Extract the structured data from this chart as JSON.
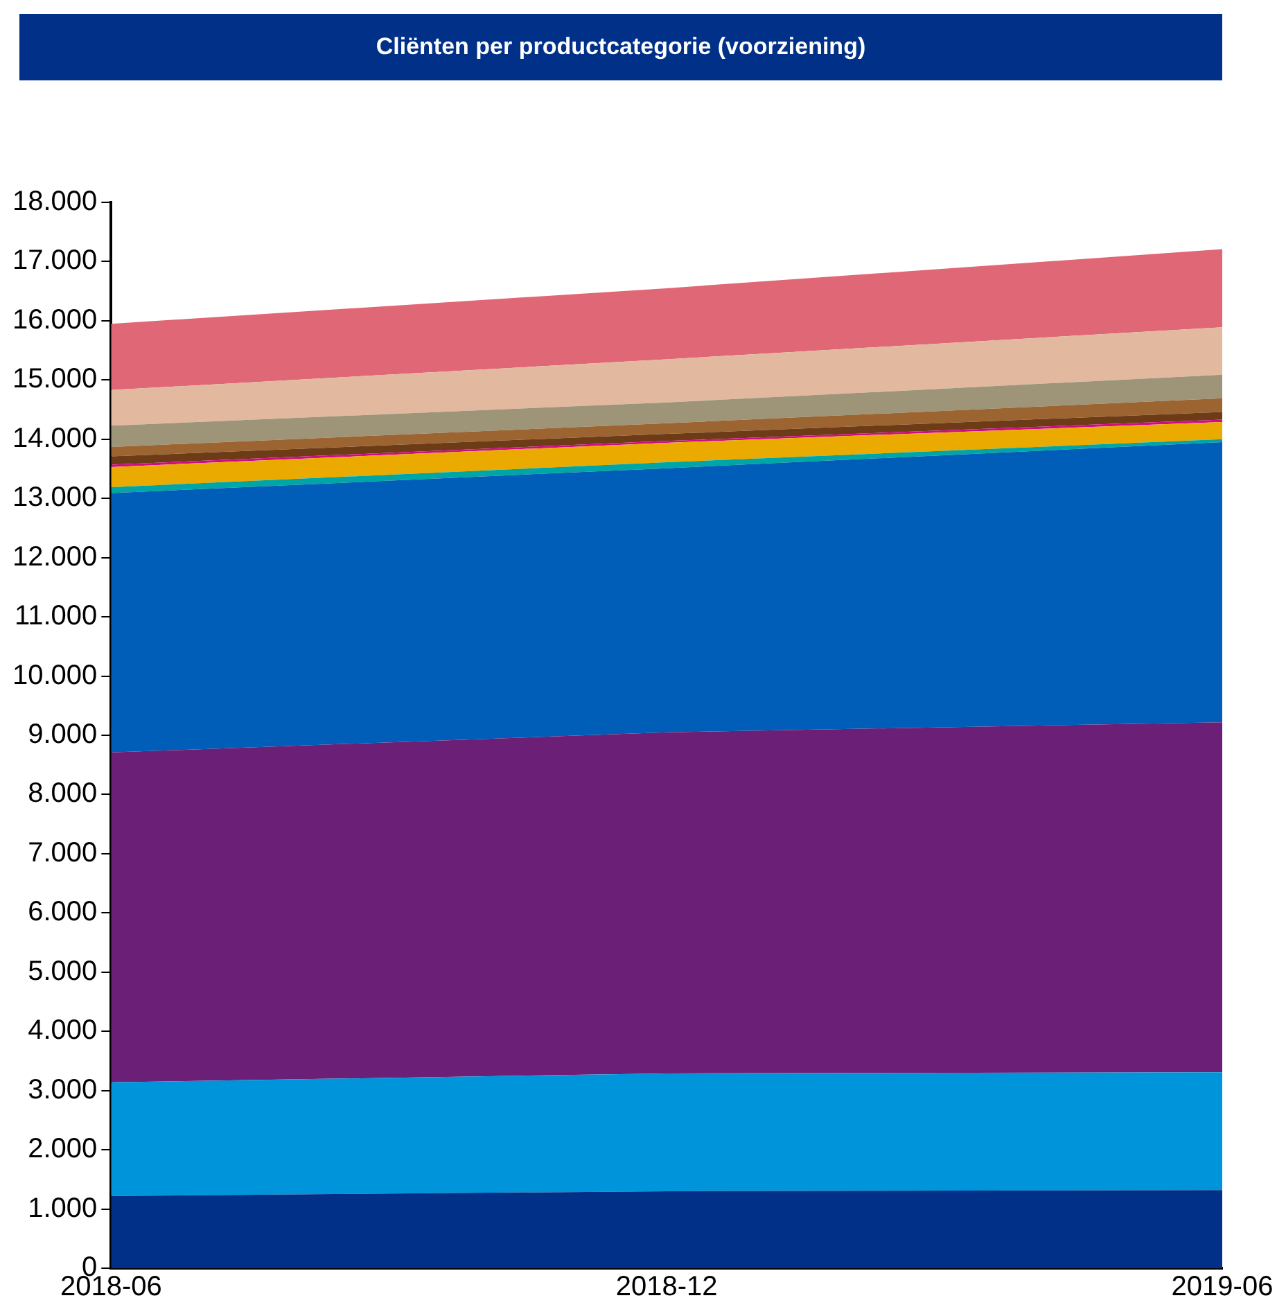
{
  "chart_data": {
    "type": "area",
    "title": "Cliënten per productcategorie (voorziening)",
    "stacked": true,
    "categories": [
      "2018-06",
      "2018-12",
      "2019-06"
    ],
    "ylim": [
      0,
      18000
    ],
    "yticks": [
      {
        "value": 0,
        "label": "0"
      },
      {
        "value": 1000,
        "label": "1.000"
      },
      {
        "value": 2000,
        "label": "2.000"
      },
      {
        "value": 3000,
        "label": "3.000"
      },
      {
        "value": 4000,
        "label": "4.000"
      },
      {
        "value": 5000,
        "label": "5.000"
      },
      {
        "value": 6000,
        "label": "6.000"
      },
      {
        "value": 7000,
        "label": "7.000"
      },
      {
        "value": 8000,
        "label": "8.000"
      },
      {
        "value": 9000,
        "label": "9.000"
      },
      {
        "value": 10000,
        "label": "10.000"
      },
      {
        "value": 11000,
        "label": "11.000"
      },
      {
        "value": 12000,
        "label": "12.000"
      },
      {
        "value": 13000,
        "label": "13.000"
      },
      {
        "value": 14000,
        "label": "14.000"
      },
      {
        "value": 15000,
        "label": "15.000"
      },
      {
        "value": 16000,
        "label": "16.000"
      },
      {
        "value": 17000,
        "label": "17.000"
      },
      {
        "value": 18000,
        "label": "18.000"
      }
    ],
    "grid": false,
    "legend": false,
    "series": [
      {
        "color": "#003087",
        "values": [
          1220,
          1300,
          1320
        ]
      },
      {
        "color": "#0095db",
        "values": [
          1920,
          1990,
          1990
        ]
      },
      {
        "color": "#6b1f76",
        "values": [
          5570,
          5760,
          5910
        ]
      },
      {
        "color": "#005eb8",
        "values": [
          4380,
          4460,
          4730
        ]
      },
      {
        "color": "#00a5a5",
        "values": [
          100,
          100,
          50
        ]
      },
      {
        "color": "#eaaa00",
        "values": [
          340,
          330,
          290
        ]
      },
      {
        "color": "#d10a8c",
        "values": [
          40,
          30,
          40
        ]
      },
      {
        "color": "#6e3b17",
        "values": [
          140,
          120,
          130
        ]
      },
      {
        "color": "#9b6431",
        "values": [
          160,
          180,
          230
        ]
      },
      {
        "color": "#9e9477",
        "values": [
          360,
          350,
          400
        ]
      },
      {
        "color": "#e2b99f",
        "values": [
          600,
          730,
          800
        ]
      },
      {
        "color": "#e06876",
        "values": [
          1120,
          1200,
          1320
        ]
      }
    ]
  }
}
